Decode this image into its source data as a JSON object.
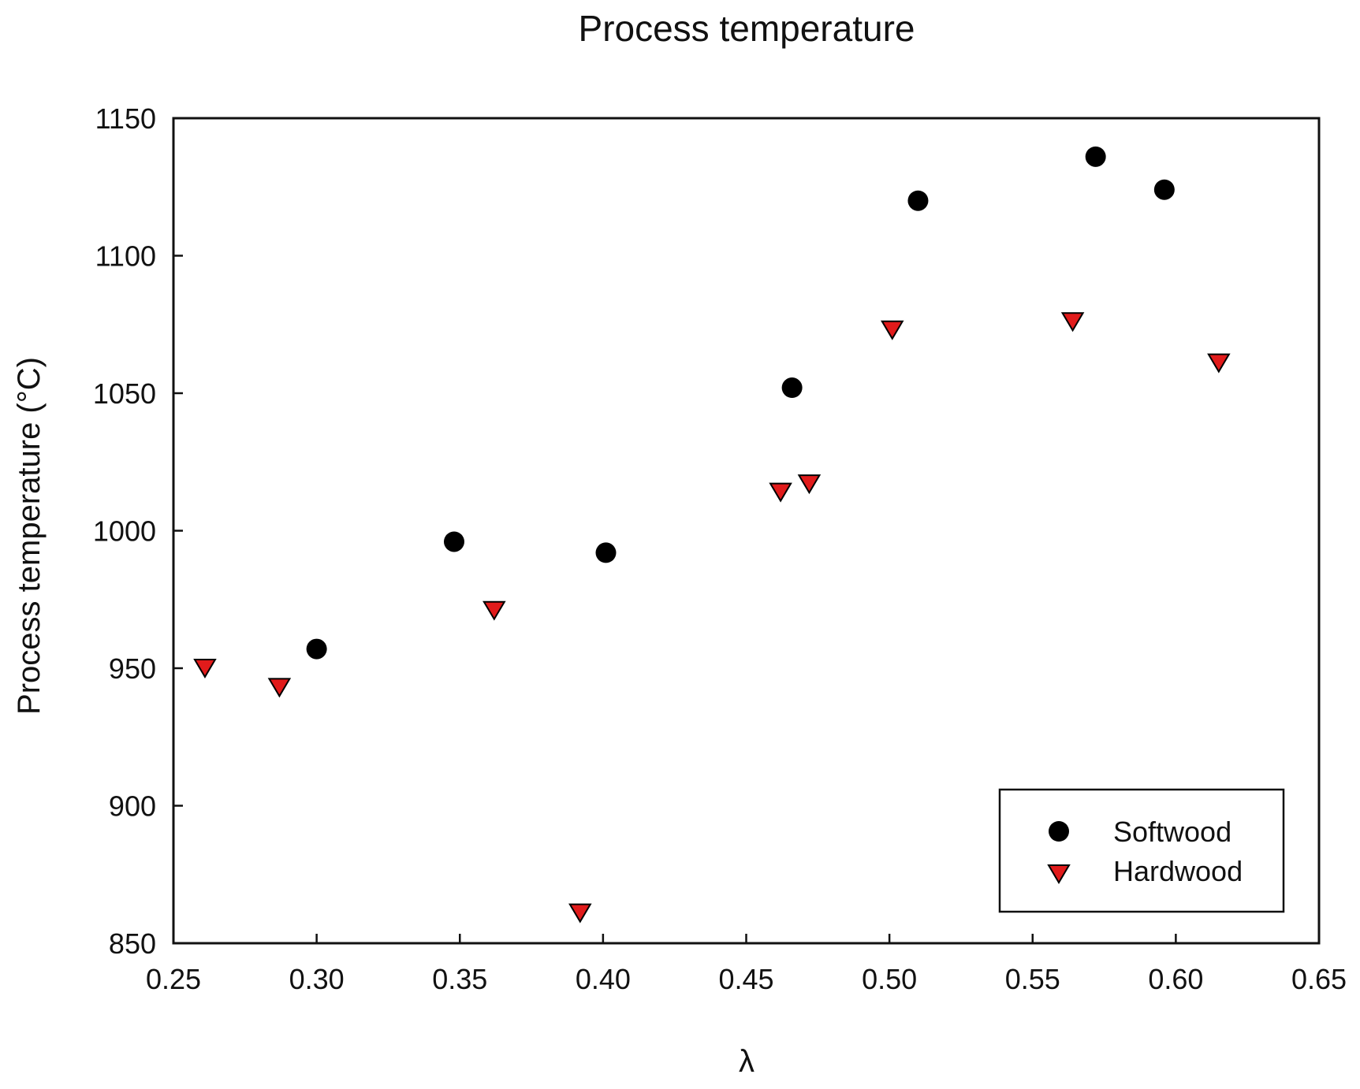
{
  "chart_data": {
    "type": "scatter",
    "title": "Process temperature",
    "xlabel": "λ",
    "ylabel": "Process temperature (°C)",
    "xlim": [
      0.25,
      0.65
    ],
    "ylim": [
      850,
      1150
    ],
    "x_ticks": [
      "0.25",
      "0.30",
      "0.35",
      "0.40",
      "0.45",
      "0.50",
      "0.55",
      "0.60",
      "0.65"
    ],
    "y_ticks": [
      "850",
      "900",
      "950",
      "1000",
      "1050",
      "1100",
      "1150"
    ],
    "grid": false,
    "legend_position": "bottom-right",
    "series": [
      {
        "name": "Softwood",
        "marker": "circle",
        "color": "#000000",
        "points": [
          {
            "x": 0.3,
            "y": 957
          },
          {
            "x": 0.348,
            "y": 996
          },
          {
            "x": 0.401,
            "y": 992
          },
          {
            "x": 0.466,
            "y": 1052
          },
          {
            "x": 0.51,
            "y": 1120
          },
          {
            "x": 0.572,
            "y": 1136
          },
          {
            "x": 0.596,
            "y": 1124
          }
        ]
      },
      {
        "name": "Hardwood",
        "marker": "triangle-down",
        "color": "#e11b1b",
        "points": [
          {
            "x": 0.261,
            "y": 950
          },
          {
            "x": 0.287,
            "y": 943
          },
          {
            "x": 0.362,
            "y": 971
          },
          {
            "x": 0.392,
            "y": 861
          },
          {
            "x": 0.462,
            "y": 1014
          },
          {
            "x": 0.472,
            "y": 1017
          },
          {
            "x": 0.501,
            "y": 1073
          },
          {
            "x": 0.564,
            "y": 1076
          },
          {
            "x": 0.615,
            "y": 1061
          }
        ]
      }
    ]
  }
}
